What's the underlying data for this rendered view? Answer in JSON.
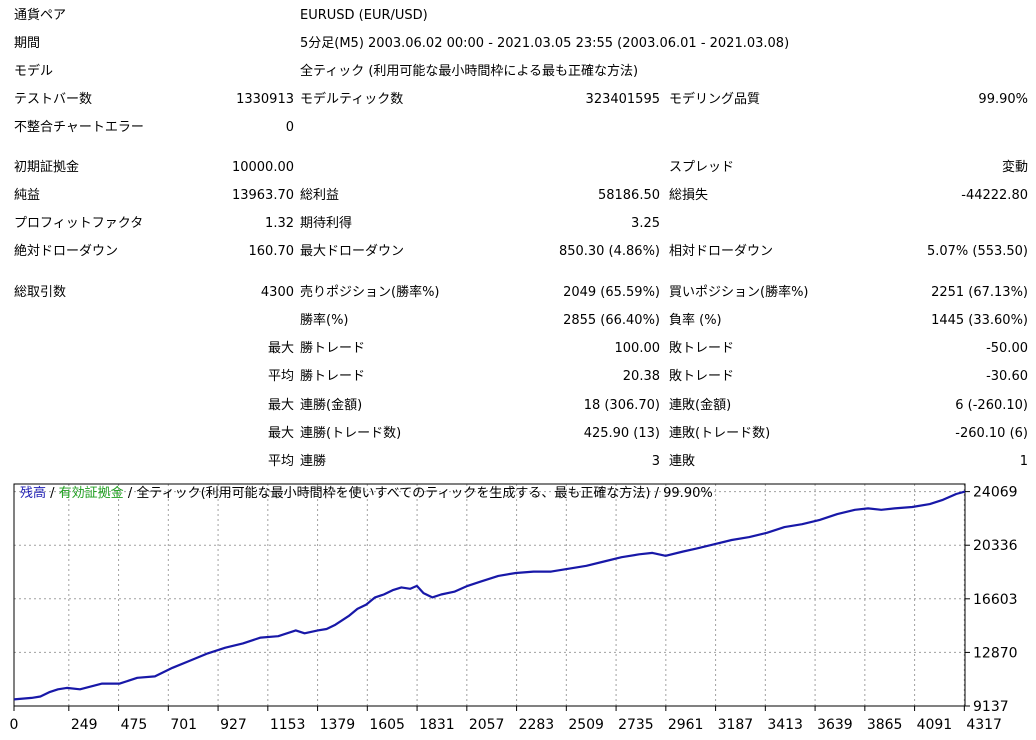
{
  "report": {
    "currency_pair": {
      "label": "通貨ペア",
      "value": "EURUSD (EUR/USD)"
    },
    "period": {
      "label": "期間",
      "value": "5分足(M5) 2003.06.02 00:00 - 2021.03.05 23:55 (2003.06.01 - 2021.03.08)"
    },
    "model": {
      "label": "モデル",
      "value": "全ティック (利用可能な最小時間枠による最も正確な方法)"
    },
    "test_bars": {
      "label": "テストバー数",
      "value": "1330913"
    },
    "modeled_ticks": {
      "label": "モデルティック数",
      "value": "323401595"
    },
    "modeling_quality": {
      "label": "モデリング品質",
      "value": "99.90%"
    },
    "mismatched_errors": {
      "label": "不整合チャートエラー",
      "value": "0"
    },
    "initial_deposit": {
      "label": "初期証拠金",
      "value": "10000.00"
    },
    "spread": {
      "label": "スプレッド",
      "value": "変動"
    },
    "net_profit": {
      "label": "純益",
      "value": "13963.70"
    },
    "gross_profit": {
      "label": "総利益",
      "value": "58186.50"
    },
    "gross_loss": {
      "label": "総損失",
      "value": "-44222.80"
    },
    "profit_factor": {
      "label": "プロフィットファクタ",
      "value": "1.32"
    },
    "expected_payoff": {
      "label": "期待利得",
      "value": "3.25"
    },
    "absolute_drawdown": {
      "label": "絶対ドローダウン",
      "value": "160.70"
    },
    "maximal_drawdown": {
      "label": "最大ドローダウン",
      "value": "850.30 (4.86%)"
    },
    "relative_drawdown": {
      "label": "相対ドローダウン",
      "value": "5.07% (553.50)"
    },
    "total_trades": {
      "label": "総取引数",
      "value": "4300"
    },
    "short_positions": {
      "label": "売りポジション(勝率%)",
      "value": "2049 (65.59%)"
    },
    "long_positions": {
      "label": "買いポジション(勝率%)",
      "value": "2251 (67.13%)"
    },
    "profit_trades": {
      "label": "勝率(%)",
      "value": "2855 (66.40%)"
    },
    "loss_trades": {
      "label": "負率 (%)",
      "value": "1445 (33.60%)"
    },
    "largest_profit_trade": {
      "prefix": "最大",
      "label": "勝トレード",
      "value": "100.00"
    },
    "largest_loss_trade": {
      "label": "敗トレード",
      "value": "-50.00"
    },
    "average_profit_trade": {
      "prefix": "平均",
      "label": "勝トレード",
      "value": "20.38"
    },
    "average_loss_trade": {
      "label": "敗トレード",
      "value": "-30.60"
    },
    "max_consecutive_wins_money": {
      "prefix": "最大",
      "label": "連勝(金額)",
      "value": "18 (306.70)"
    },
    "max_consecutive_losses_money": {
      "label": "連敗(金額)",
      "value": "6 (-260.10)"
    },
    "max_consecutive_profit_count": {
      "prefix": "最大",
      "label": "連勝(トレード数)",
      "value": "425.90 (13)"
    },
    "max_consecutive_loss_count": {
      "label": "連敗(トレード数)",
      "value": "-260.10 (6)"
    },
    "average_consecutive_wins": {
      "prefix": "平均",
      "label": "連勝",
      "value": "3"
    },
    "average_consecutive_losses": {
      "label": "連敗",
      "value": "1"
    }
  },
  "chart_title": {
    "balance": "残高",
    "sep1": " / ",
    "equity": "有効証拠金",
    "sep2": " / ",
    "rest": "全ティック(利用可能な最小時間枠を使いすべてのティックを生成する、最も正確な方法) / 99.90%"
  },
  "colors": {
    "balance": "#1f1fb4",
    "equity": "#1e9e1e",
    "line": "#1818a8",
    "grid": "#a0a0a0",
    "frame": "#000000"
  },
  "chart_data": {
    "type": "line",
    "series": [
      {
        "name": "残高",
        "x": [
          0,
          80,
          120,
          160,
          200,
          240,
          300,
          400,
          480,
          560,
          640,
          720,
          800,
          880,
          960,
          1040,
          1120,
          1200,
          1280,
          1320,
          1380,
          1420,
          1460,
          1520,
          1560,
          1600,
          1640,
          1680,
          1720,
          1760,
          1800,
          1830,
          1860,
          1900,
          1940,
          2000,
          2060,
          2120,
          2200,
          2280,
          2360,
          2440,
          2520,
          2600,
          2680,
          2760,
          2840,
          2900,
          2960,
          3040,
          3100,
          3180,
          3260,
          3340,
          3420,
          3500,
          3580,
          3660,
          3740,
          3820,
          3880,
          3940,
          4000,
          4080,
          4160,
          4220,
          4280,
          4320
        ],
        "y": [
          9600,
          9700,
          9800,
          10100,
          10300,
          10400,
          10300,
          10700,
          10700,
          11100,
          11200,
          11800,
          12300,
          12800,
          13200,
          13500,
          13900,
          14000,
          14400,
          14200,
          14400,
          14500,
          14800,
          15400,
          15900,
          16200,
          16700,
          16900,
          17200,
          17400,
          17300,
          17500,
          17000,
          16700,
          16900,
          17100,
          17500,
          17800,
          18200,
          18400,
          18500,
          18500,
          18700,
          18900,
          19200,
          19500,
          19700,
          19800,
          19600,
          19900,
          20100,
          20400,
          20700,
          20900,
          21200,
          21600,
          21800,
          22100,
          22500,
          22800,
          22900,
          22800,
          22900,
          23000,
          23200,
          23500,
          23900,
          24069
        ]
      }
    ],
    "x_ticks": [
      0,
      249,
      475,
      701,
      927,
      1153,
      1379,
      1605,
      1831,
      2057,
      2283,
      2509,
      2735,
      2961,
      3187,
      3413,
      3639,
      3865,
      4091,
      4317
    ],
    "y_ticks": [
      9137,
      12870,
      16603,
      20336,
      24069
    ],
    "xlim": [
      0,
      4320
    ],
    "ylim": [
      9137,
      24600
    ],
    "grid": true
  }
}
